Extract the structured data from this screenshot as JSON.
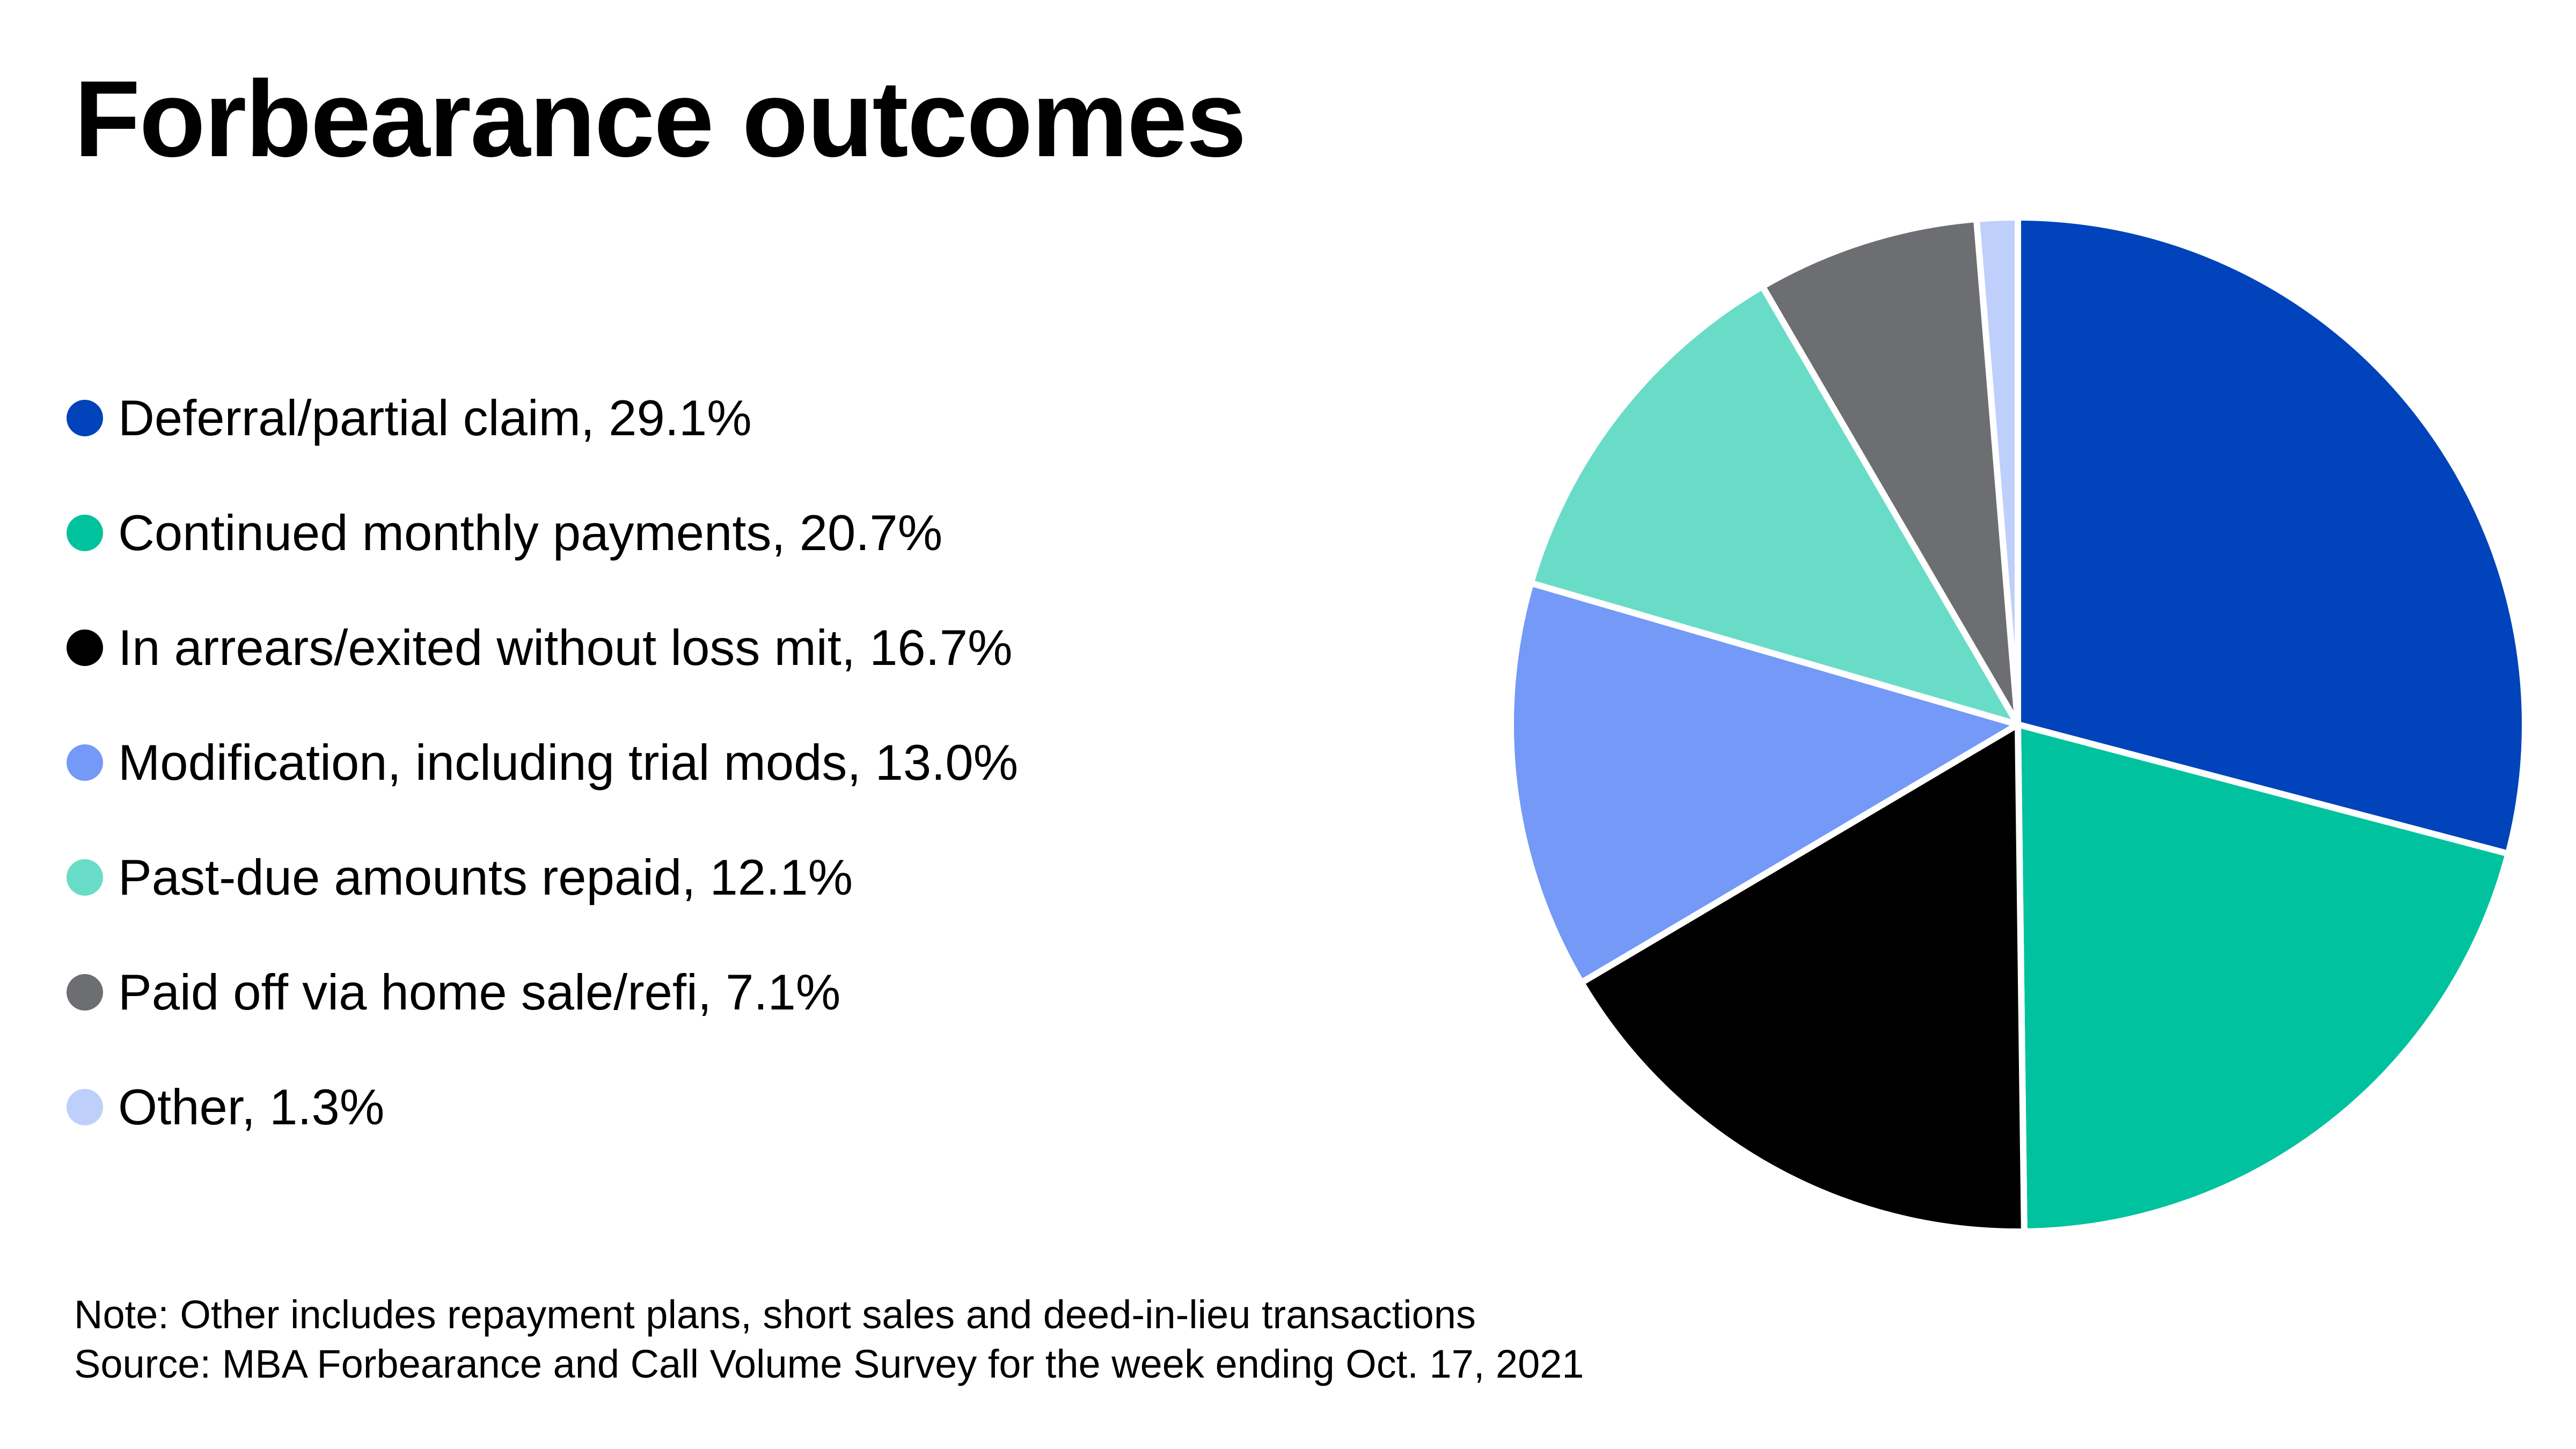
{
  "chart_data": {
    "type": "pie",
    "title": "Forbearance outcomes",
    "legend_position": "left",
    "slices": [
      {
        "label": "Deferral/partial claim",
        "value": 29.1,
        "legend_text": "Deferral/partial claim, 29.1%",
        "color": "#0043BA"
      },
      {
        "label": "Continued monthly payments",
        "value": 20.7,
        "legend_text": "Continued monthly payments, 20.7%",
        "color": "#00C29E"
      },
      {
        "label": "In arrears/exited without loss mit",
        "value": 16.7,
        "legend_text": "In arrears/exited without loss mit, 16.7%",
        "color": "#000000"
      },
      {
        "label": "Modification, including trial mods",
        "value": 13.0,
        "legend_text": "Modification, including trial mods, 13.0%",
        "color": "#7499F7"
      },
      {
        "label": "Past-due amounts repaid",
        "value": 12.1,
        "legend_text": "Past-due amounts repaid, 12.1%",
        "color": "#69DCC7"
      },
      {
        "label": "Paid off via home sale/refi",
        "value": 7.1,
        "legend_text": "Paid off via home sale/refi, 7.1%",
        "color": "#6D6E71"
      },
      {
        "label": "Other",
        "value": 1.3,
        "legend_text": "Other, 1.3%",
        "color": "#BFCFFB"
      }
    ]
  },
  "footnotes": {
    "note": "Note: Other includes repayment plans, short sales and deed-in-lieu transactions",
    "source": "Source: MBA Forbearance and Call Volume Survey for the week ending Oct. 17, 2021"
  }
}
